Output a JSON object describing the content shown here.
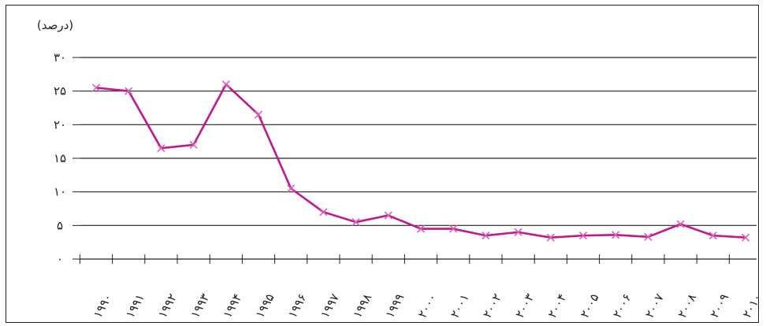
{
  "chart_data": {
    "type": "line",
    "unit_label": "(درصد)",
    "y_ticks": [
      "۰",
      "۵",
      "۱۰",
      "۱۵",
      "۲۰",
      "۲۵",
      "۳۰"
    ],
    "y_tick_values": [
      0,
      5,
      10,
      15,
      20,
      25,
      30
    ],
    "ylim": [
      0,
      30
    ],
    "grid": true,
    "categories": [
      "۱۹۹۰",
      "۱۹۹۱",
      "۱۹۹۲",
      "۱۹۹۳",
      "۱۹۹۴",
      "۱۹۹۵",
      "۱۹۹۶",
      "۱۹۹۷",
      "۱۹۹۸",
      "۱۹۹۹",
      "۲۰۰۰",
      "۲۰۰۱",
      "۲۰۰۲",
      "۲۰۰۳",
      "۲۰۰۴",
      "۲۰۰۵",
      "۲۰۰۶",
      "۲۰۰۷",
      "۲۰۰۸",
      "۲۰۰۹",
      "۲۰۱۰"
    ],
    "series": [
      {
        "color": "#c2178f",
        "marker": "x",
        "values": [
          25.5,
          25.0,
          16.5,
          17.0,
          26.0,
          21.5,
          10.5,
          7.0,
          5.5,
          6.5,
          4.5,
          4.5,
          3.5,
          4.0,
          3.2,
          3.5,
          3.6,
          3.3,
          5.2,
          3.5,
          3.2
        ]
      }
    ]
  }
}
